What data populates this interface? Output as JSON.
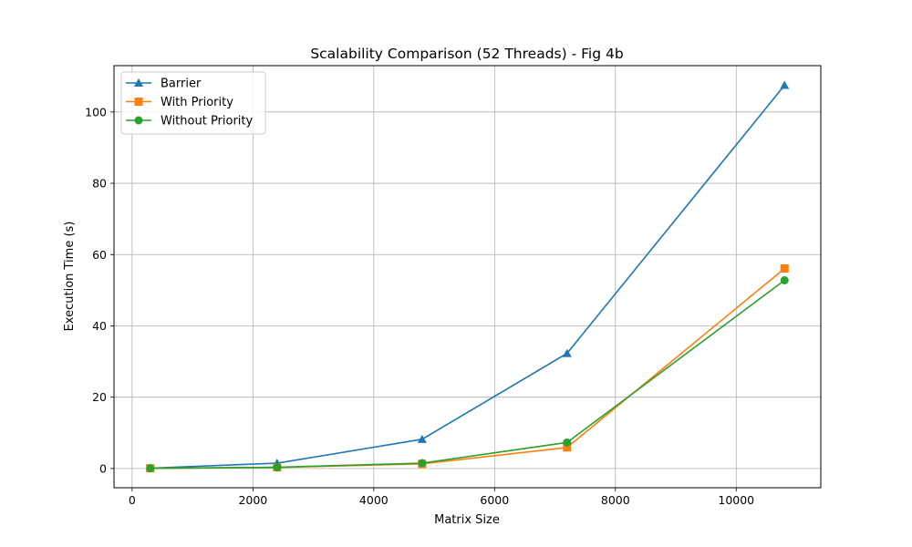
{
  "chart_data": {
    "type": "line",
    "title": "Scalability Comparison (52 Threads) - Fig 4b",
    "xlabel": "Matrix Size",
    "ylabel": "Execution Time (s)",
    "xlim": [
      -300,
      11400
    ],
    "ylim": [
      -5.4,
      113
    ],
    "xticks": [
      0,
      2000,
      4000,
      6000,
      8000,
      10000
    ],
    "yticks": [
      0,
      20,
      40,
      60,
      80,
      100
    ],
    "grid": true,
    "legend_position": "top-left",
    "x": [
      300,
      2400,
      4800,
      7200,
      10800
    ],
    "series": [
      {
        "name": "Barrier",
        "values": [
          0.1,
          1.5,
          8.2,
          32.3,
          107.5
        ],
        "color": "#1f77b4",
        "marker": "triangle"
      },
      {
        "name": "With Priority",
        "values": [
          0.05,
          0.3,
          1.3,
          5.9,
          56.1
        ],
        "color": "#ff7f0e",
        "marker": "square"
      },
      {
        "name": "Without Priority",
        "values": [
          0.05,
          0.35,
          1.5,
          7.3,
          52.8
        ],
        "color": "#2ca02c",
        "marker": "circle"
      }
    ]
  }
}
